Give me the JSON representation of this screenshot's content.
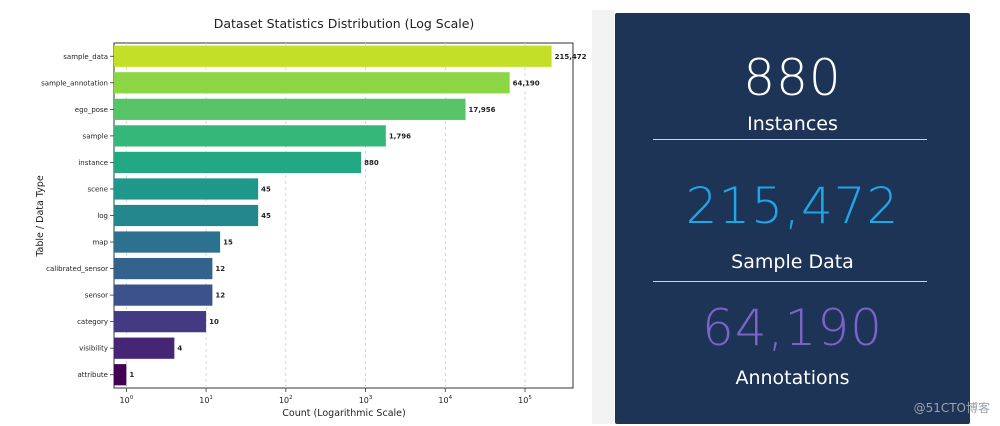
{
  "chart_data": {
    "type": "bar",
    "orientation": "horizontal",
    "title": "Dataset Statistics Distribution (Log Scale)",
    "xlabel": "Count (Logarithmic Scale)",
    "ylabel": "Table / Data Type",
    "xscale": "log",
    "xlim": [
      0.7,
      400000
    ],
    "grid": "vertical dashed",
    "categories": [
      "sample_data",
      "sample_annotation",
      "ego_pose",
      "sample",
      "instance",
      "scene",
      "log",
      "map",
      "calibrated_sensor",
      "sensor",
      "category",
      "visibility",
      "attribute"
    ],
    "values": [
      215472,
      64190,
      17956,
      1796,
      880,
      45,
      45,
      15,
      12,
      12,
      10,
      4,
      1
    ],
    "value_labels": [
      "215,472",
      "64,190",
      "17,956",
      "1,796",
      "880",
      "45",
      "45",
      "15",
      "12",
      "12",
      "10",
      "4",
      "1"
    ],
    "colors": [
      "#c4df27",
      "#8cd645",
      "#57c567",
      "#35b779",
      "#23a884",
      "#1f988b",
      "#24878e",
      "#2c728e",
      "#33638d",
      "#3b528b",
      "#443a83",
      "#472575",
      "#440154"
    ],
    "x_ticks": [
      {
        "value": 1,
        "base": "10",
        "exp": "0"
      },
      {
        "value": 10,
        "base": "10",
        "exp": "1"
      },
      {
        "value": 100,
        "base": "10",
        "exp": "2"
      },
      {
        "value": 1000,
        "base": "10",
        "exp": "3"
      },
      {
        "value": 10000,
        "base": "10",
        "exp": "4"
      },
      {
        "value": 100000,
        "base": "10",
        "exp": "5"
      }
    ]
  },
  "stats": [
    {
      "value": "880",
      "label": "Instances",
      "color": "#ffffff"
    },
    {
      "value": "215,472",
      "label": "Sample Data",
      "color": "#1ea7e8"
    },
    {
      "value": "64,190",
      "label": "Annotations",
      "color": "#7a63c9"
    }
  ],
  "watermark": "@51CTO博客"
}
